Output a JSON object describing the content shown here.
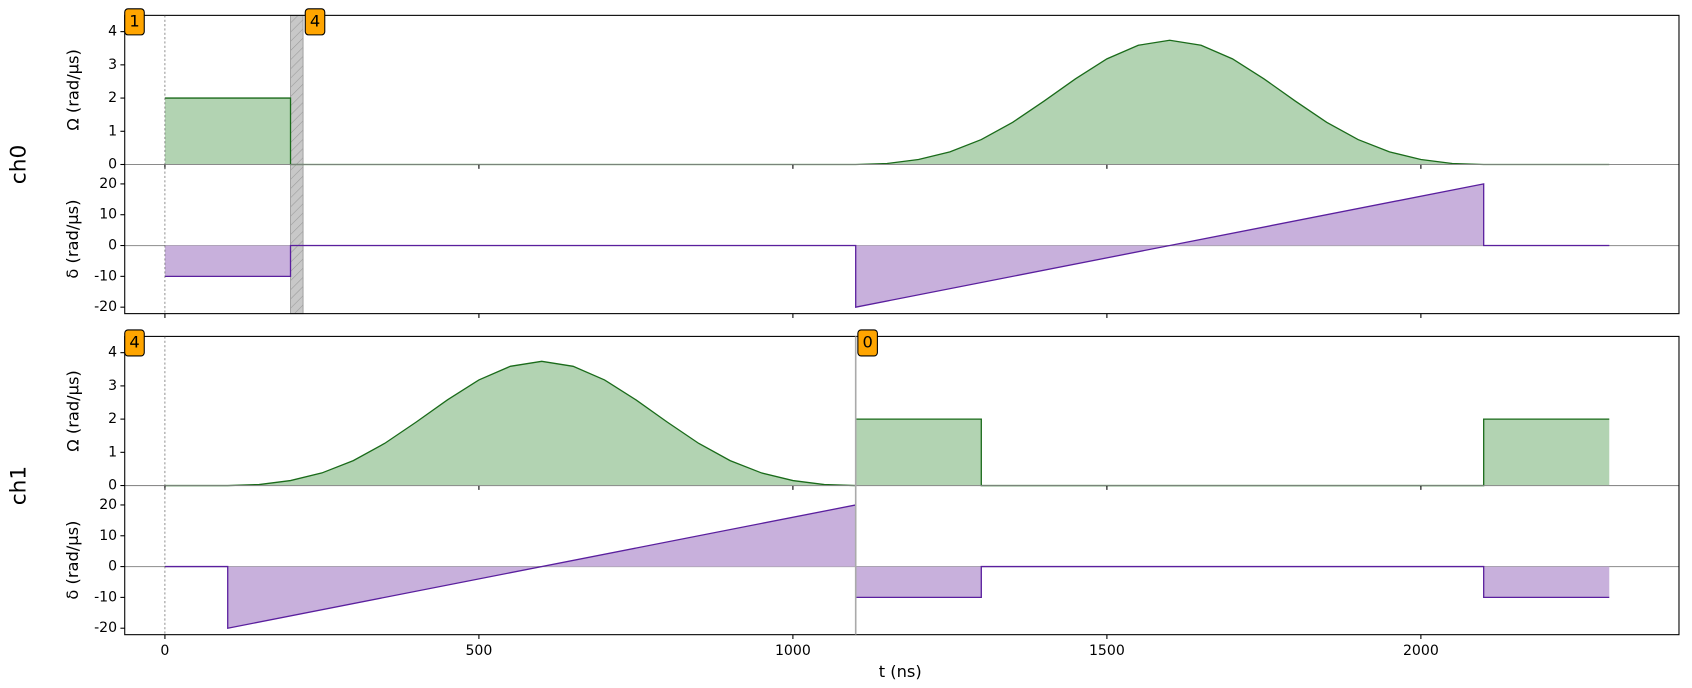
{
  "chart_data": {
    "type": "line",
    "xlabel": "t (ns)",
    "xlim": [
      -64,
      2411
    ],
    "xticks": [
      0,
      500,
      1000,
      1500,
      2000
    ],
    "channels": [
      {
        "name": "ch0",
        "annotations": [
          {
            "x": 0,
            "label": "1",
            "line_style": "dotted"
          },
          {
            "x": 220,
            "label": "4"
          }
        ],
        "shaded": [
          200,
          220
        ],
        "panels": [
          {
            "ylabel": "Ω (rad/µs)",
            "ylim": [
              0,
              4.49
            ],
            "yticks": [
              0,
              1,
              2,
              3,
              4
            ],
            "color": "#1a6b1a",
            "fill_color": "#b2d3b2",
            "x": [
              0,
              200,
              200,
              1100,
              1150,
              1200,
              1250,
              1300,
              1350,
              1400,
              1450,
              1500,
              1550,
              1600,
              1650,
              1700,
              1750,
              1800,
              1850,
              1900,
              1950,
              2000,
              2050,
              2100,
              2300
            ],
            "values": [
              2,
              2,
              0,
              0,
              0.03,
              0.15,
              0.38,
              0.75,
              1.27,
              1.91,
              2.58,
              3.18,
              3.59,
              3.74,
              3.59,
              3.18,
              2.58,
              1.91,
              1.27,
              0.75,
              0.38,
              0.15,
              0.03,
              0,
              0
            ]
          },
          {
            "ylabel": "δ (rad/µs)",
            "ylim": [
              -22.1,
              26.3
            ],
            "yticks": [
              -20,
              -10,
              0,
              10,
              20
            ],
            "color": "#5a1f9e",
            "fill_color": "#c8b0dc",
            "x": [
              0,
              200,
              200,
              1100,
              1100,
              2100,
              2100,
              2300
            ],
            "values": [
              -10,
              -10,
              0,
              0,
              -20,
              20,
              0,
              0
            ]
          }
        ]
      },
      {
        "name": "ch1",
        "annotations": [
          {
            "x": 0,
            "label": "4",
            "line_style": "dotted"
          },
          {
            "x": 1100,
            "label": "0",
            "line_style": "solid"
          }
        ],
        "panels": [
          {
            "ylabel": "Ω (rad/µs)",
            "ylim": [
              0,
              4.49
            ],
            "yticks": [
              0,
              1,
              2,
              3,
              4
            ],
            "color": "#1a6b1a",
            "fill_color": "#b2d3b2",
            "x": [
              0,
              100,
              150,
              200,
              250,
              300,
              350,
              400,
              450,
              500,
              550,
              600,
              650,
              700,
              750,
              800,
              850,
              900,
              950,
              1000,
              1050,
              1100,
              1100,
              1300,
              1300,
              2100,
              2100,
              2300
            ],
            "values": [
              0,
              0,
              0.03,
              0.15,
              0.38,
              0.75,
              1.27,
              1.91,
              2.58,
              3.18,
              3.59,
              3.74,
              3.59,
              3.18,
              2.58,
              1.91,
              1.27,
              0.75,
              0.38,
              0.15,
              0.03,
              0,
              2,
              2,
              0,
              0,
              2,
              2
            ]
          },
          {
            "ylabel": "δ (rad/µs)",
            "ylim": [
              -22.1,
              26.3
            ],
            "yticks": [
              -20,
              -10,
              0,
              10,
              20
            ],
            "color": "#5a1f9e",
            "fill_color": "#c8b0dc",
            "x": [
              0,
              100,
              100,
              1100,
              1100,
              1300,
              1300,
              2100,
              2100,
              2300
            ],
            "values": [
              0,
              0,
              -20,
              20,
              -10,
              -10,
              0,
              0,
              -10,
              -10
            ]
          }
        ]
      }
    ]
  }
}
